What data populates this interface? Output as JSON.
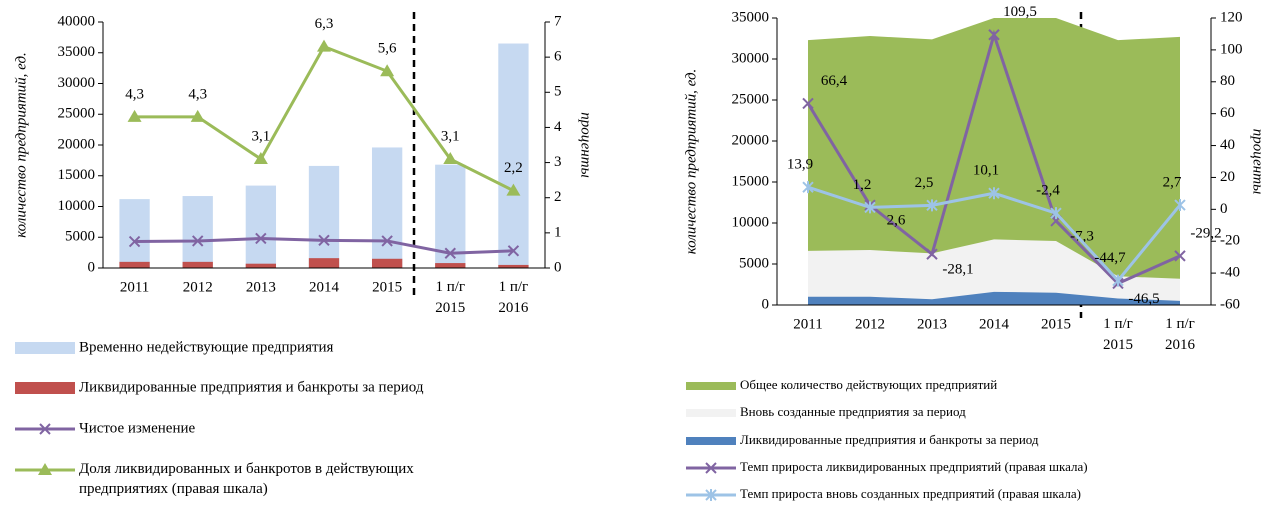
{
  "chart_data": [
    {
      "type": "combo",
      "ylabel": "количество предприятий, ед.",
      "y2label": "проценты",
      "categories": [
        "2011",
        "2012",
        "2013",
        "2014",
        "2015",
        "1 п/г 2015",
        "1 п/г 2016"
      ],
      "ylim": [
        0,
        40000
      ],
      "yticks": [
        0,
        5000,
        10000,
        15000,
        20000,
        25000,
        30000,
        35000,
        40000
      ],
      "y2lim": [
        0,
        7
      ],
      "y2ticks": [
        0,
        1,
        2,
        3,
        4,
        5,
        6,
        7
      ],
      "series": [
        {
          "name": "Временно недействующие предприятия",
          "type": "bar",
          "color": "#c6d9f1",
          "values": [
            11200,
            11700,
            13400,
            16600,
            19600,
            16800,
            36500
          ]
        },
        {
          "name": "Ликвидированные предприятия и банкроты за период",
          "type": "bar",
          "color": "#c0504d",
          "values": [
            1000,
            1000,
            700,
            1600,
            1500,
            800,
            500
          ]
        },
        {
          "name": "Чистое изменение",
          "type": "line",
          "marker": "x",
          "color": "#8064a2",
          "values": [
            4300,
            4400,
            4800,
            4500,
            4400,
            2400,
            2800
          ]
        },
        {
          "name": "Доля ликвидированных и банкротов в действующих предприятиях (правая шкала)",
          "type": "line",
          "marker": "triangle",
          "color": "#9bbb59",
          "axis": "y2",
          "values": [
            4.3,
            4.3,
            3.1,
            6.3,
            5.6,
            3.1,
            2.2
          ],
          "value_labels": [
            "4,3",
            "4,3",
            "3,1",
            "6,3",
            "5,6",
            "3,1",
            "2,2"
          ]
        }
      ]
    },
    {
      "type": "combo",
      "ylabel": "количество предприятий, ед.",
      "y2label": "проценты",
      "categories": [
        "2011",
        "2012",
        "2013",
        "2014",
        "2015",
        "1 п/г 2015",
        "1 п/г 2016"
      ],
      "ylim": [
        0,
        35000
      ],
      "yticks": [
        0,
        5000,
        10000,
        15000,
        20000,
        25000,
        30000,
        35000
      ],
      "y2lim": [
        -60,
        120
      ],
      "y2ticks": [
        -60,
        -40,
        -20,
        0,
        20,
        40,
        60,
        80,
        100,
        120
      ],
      "series": [
        {
          "name": "Общее количество действующих предприятий",
          "type": "area",
          "color": "#9bbb59",
          "values": [
            32300,
            32800,
            32400,
            35000,
            35000,
            32300,
            32700
          ]
        },
        {
          "name": "Вновь созданные предприятия за период",
          "type": "area",
          "color": "#f2f2f2",
          "values": [
            6600,
            6700,
            6300,
            8000,
            7800,
            3500,
            3200
          ]
        },
        {
          "name": "Ликвидированные предприятия и банкроты за период",
          "type": "area",
          "color": "#4f81bd",
          "values": [
            1000,
            1000,
            700,
            1600,
            1500,
            800,
            500
          ]
        },
        {
          "name": "Темп прироста ликвидированных предприятий (правая шкала)",
          "type": "line",
          "marker": "x",
          "color": "#8064a2",
          "axis": "y2",
          "values": [
            66.4,
            2.6,
            -28.1,
            109.5,
            -7.3,
            -46.5,
            -29.2
          ],
          "value_labels": [
            "66,4",
            "2,6",
            "-28,1",
            "109,5",
            "-7,3",
            "-46,5",
            "-29,2"
          ]
        },
        {
          "name": "Темп прироста вновь созданных предприятий (правая шкала)",
          "type": "line",
          "marker": "star",
          "color": "#9dc3e6",
          "axis": "y2",
          "values": [
            13.9,
            1.2,
            2.5,
            10.1,
            -2.4,
            -44.7,
            2.7
          ],
          "value_labels": [
            "13,9",
            "1,2",
            "2,5",
            "10,1",
            "-2,4",
            "-44,7",
            "2,7"
          ]
        }
      ]
    }
  ]
}
